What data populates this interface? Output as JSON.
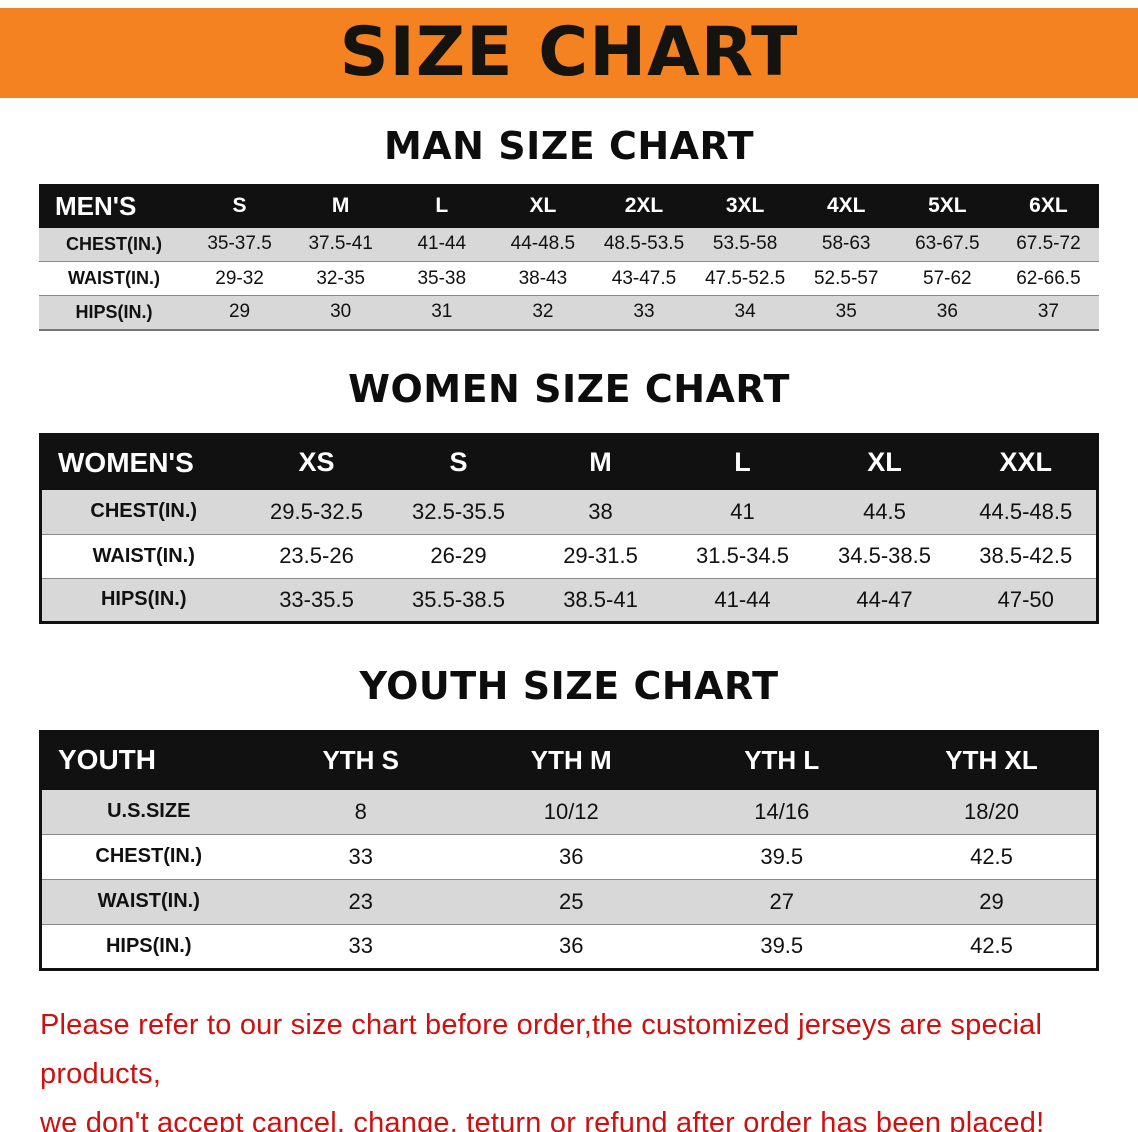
{
  "banner": {
    "title": "SIZE CHART"
  },
  "sections": [
    {
      "heading": "MAN SIZE CHART",
      "table": {
        "header": [
          "MEN'S",
          "S",
          "M",
          "L",
          "XL",
          "2XL",
          "3XL",
          "4XL",
          "5XL",
          "6XL"
        ],
        "rows": [
          [
            "CHEST(IN.)",
            "35-37.5",
            "37.5-41",
            "41-44",
            "44-48.5",
            "48.5-53.5",
            "53.5-58",
            "58-63",
            "63-67.5",
            "67.5-72"
          ],
          [
            "WAIST(IN.)",
            "29-32",
            "32-35",
            "35-38",
            "38-43",
            "43-47.5",
            "47.5-52.5",
            "52.5-57",
            "57-62",
            "62-66.5"
          ],
          [
            "HIPS(IN.)",
            "29",
            "30",
            "31",
            "32",
            "33",
            "34",
            "35",
            "36",
            "37"
          ]
        ]
      }
    },
    {
      "heading": "WOMEN SIZE CHART",
      "table": {
        "header": [
          "WOMEN'S",
          "XS",
          "S",
          "M",
          "L",
          "XL",
          "XXL"
        ],
        "rows": [
          [
            "CHEST(IN.)",
            "29.5-32.5",
            "32.5-35.5",
            "38",
            "41",
            "44.5",
            "44.5-48.5"
          ],
          [
            "WAIST(IN.)",
            "23.5-26",
            "26-29",
            "29-31.5",
            "31.5-34.5",
            "34.5-38.5",
            "38.5-42.5"
          ],
          [
            "HIPS(IN.)",
            "33-35.5",
            "35.5-38.5",
            "38.5-41",
            "41-44",
            "44-47",
            "47-50"
          ]
        ]
      }
    },
    {
      "heading": "YOUTH SIZE CHART",
      "table": {
        "header": [
          "YOUTH",
          "YTH S",
          "YTH M",
          "YTH L",
          "YTH XL"
        ],
        "rows": [
          [
            "U.S.SIZE",
            "8",
            "10/12",
            "14/16",
            "18/20"
          ],
          [
            "CHEST(IN.)",
            "33",
            "36",
            "39.5",
            "42.5"
          ],
          [
            "WAIST(IN.)",
            "23",
            "25",
            "27",
            "29"
          ],
          [
            "HIPS(IN.)",
            "33",
            "36",
            "39.5",
            "42.5"
          ]
        ]
      }
    }
  ],
  "footer": {
    "line1": "Please refer to our size chart before order,the customized jerseys are special products,",
    "line2": "we don't accept cancel, change, teturn or refund after order has been placed!"
  },
  "colors": {
    "banner_bg": "#F58220",
    "header_bg": "#111111",
    "row_alt": "#D8D8D8",
    "footer_text": "#CC1111"
  }
}
